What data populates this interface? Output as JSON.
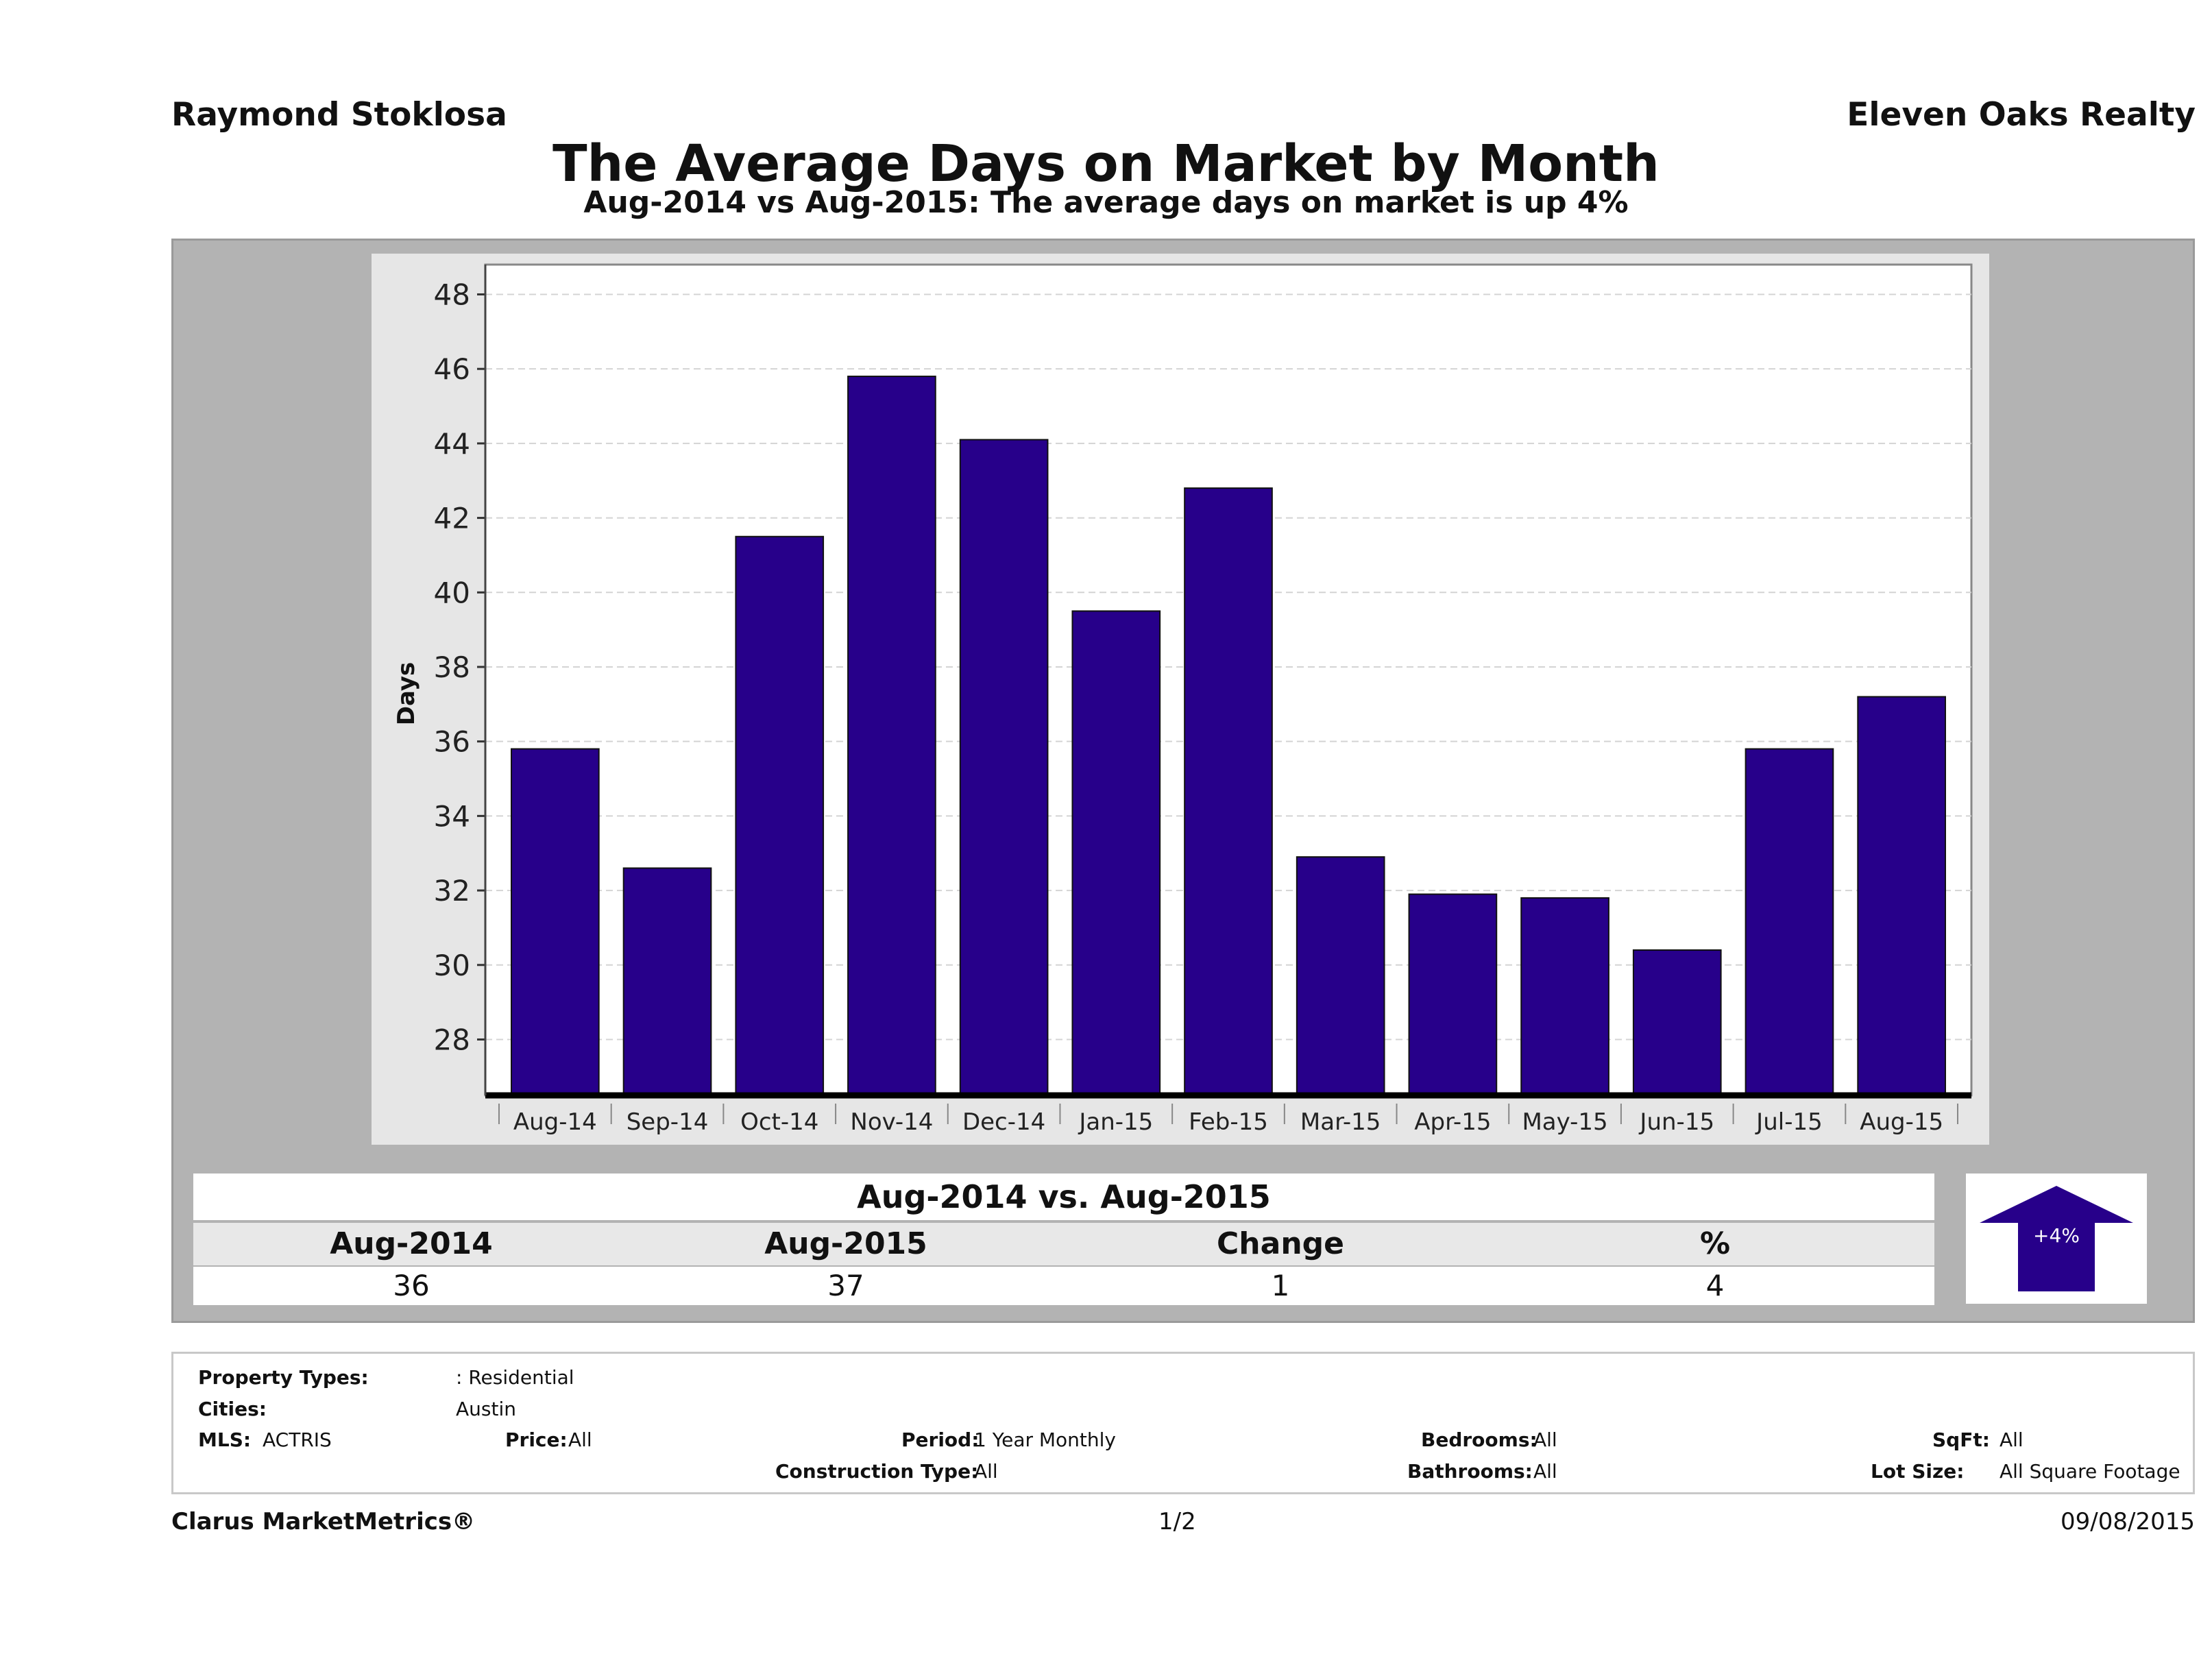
{
  "header": {
    "agent": "Raymond Stoklosa",
    "company": "Eleven Oaks Realty",
    "title": "The Average Days on Market by Month",
    "subtitle": "Aug-2014 vs Aug-2015: The average days on market is up 4%"
  },
  "chart_data": {
    "type": "bar",
    "ylabel": "Days",
    "xlabel": "",
    "categories": [
      "Aug-14",
      "Sep-14",
      "Oct-14",
      "Nov-14",
      "Dec-14",
      "Jan-15",
      "Feb-15",
      "Mar-15",
      "Apr-15",
      "May-15",
      "Jun-15",
      "Jul-15",
      "Aug-15"
    ],
    "values": [
      35.8,
      32.6,
      41.5,
      45.8,
      44.1,
      39.5,
      42.8,
      32.9,
      31.9,
      31.8,
      30.4,
      35.8,
      37.2
    ],
    "ylim": [
      26.5,
      48.8
    ],
    "yticks": [
      28,
      30,
      32,
      34,
      36,
      38,
      40,
      42,
      44,
      46,
      48
    ],
    "grid": true,
    "bar_color": "#27008a"
  },
  "summary": {
    "heading": "Aug-2014 vs. Aug-2015",
    "columns": [
      "Aug-2014",
      "Aug-2015",
      "Change",
      "%"
    ],
    "values": [
      "36",
      "37",
      "1",
      "4"
    ],
    "badge": "+4%",
    "badge_color": "#27008a"
  },
  "criteria": {
    "property_types_label": "Property Types:",
    "property_types_value": ": Residential",
    "cities_label": "Cities:",
    "cities_value": "Austin",
    "mls_label": "MLS:",
    "mls_value": "ACTRIS",
    "price_label": "Price:",
    "price_value": "All",
    "period_label": "Period:",
    "period_value": "1 Year Monthly",
    "construction_label": "Construction Type:",
    "construction_value": "All",
    "bedrooms_label": "Bedrooms:",
    "bedrooms_value": "All",
    "bathrooms_label": "Bathrooms:",
    "bathrooms_value": "All",
    "sqft_label": "SqFt:",
    "sqft_value": "All",
    "lot_label": "Lot Size:",
    "lot_value": "All Square Footage"
  },
  "footer": {
    "brand": "Clarus MarketMetrics®",
    "page": "1/2",
    "date": "09/08/2015"
  }
}
